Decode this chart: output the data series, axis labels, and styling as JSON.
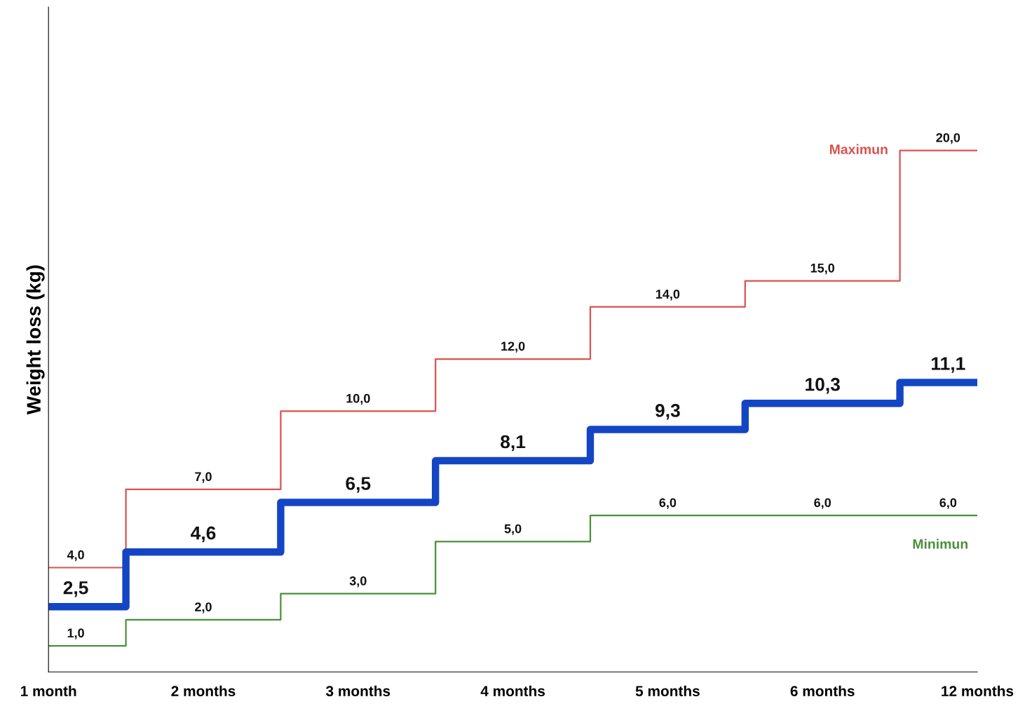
{
  "chart_data": {
    "type": "step",
    "ylabel": "Weight loss (kg)",
    "categories": [
      "1 month",
      "2 months",
      "3 months",
      "4 months",
      "5 months",
      "6 months",
      "12 months"
    ],
    "ylim": [
      0,
      25.5
    ],
    "tick_labels": "x",
    "grid": false,
    "legend": false,
    "line_style": "solid",
    "marker": "none",
    "series": [
      {
        "name": "Maximun",
        "color": "#d9534f",
        "values": [
          4.0,
          7.0,
          10.0,
          12.0,
          14.0,
          15.0,
          20.0
        ],
        "value_labels": [
          "4,0",
          "7,0",
          "10,0",
          "12,0",
          "14,0",
          "15,0",
          "20,0"
        ]
      },
      {
        "color": "#1446c4",
        "values": [
          2.5,
          4.6,
          6.5,
          8.1,
          9.3,
          10.3,
          11.1
        ],
        "value_labels": [
          "2,5",
          "4,6",
          "6,5",
          "8,1",
          "9,3",
          "10,3",
          "11,1"
        ]
      },
      {
        "name": "Minimun",
        "color": "#4a8f3a",
        "values": [
          1.0,
          2.0,
          3.0,
          5.0,
          6.0,
          6.0,
          6.0
        ],
        "value_labels": [
          "1,0",
          "2,0",
          "3,0",
          "5,0",
          "6,0",
          "6,0",
          "6,0"
        ]
      }
    ]
  }
}
